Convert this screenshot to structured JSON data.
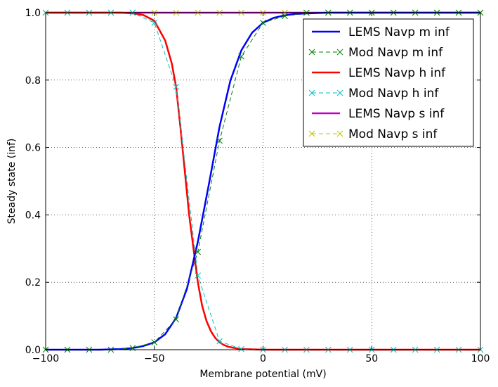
{
  "chart_data": {
    "type": "line",
    "title": "",
    "xlabel": "Membrane potential (mV)",
    "ylabel": "Steady state (inf)",
    "xlim": [
      -100,
      100
    ],
    "ylim": [
      0.0,
      1.0
    ],
    "xticks": [
      -100,
      -50,
      0,
      50,
      100
    ],
    "xtick_labels": [
      "−100",
      "−50",
      "0",
      "50",
      "100"
    ],
    "yticks": [
      0.0,
      0.2,
      0.4,
      0.6,
      0.8,
      1.0
    ],
    "ytick_labels": [
      "0.0",
      "0.2",
      "0.4",
      "0.6",
      "0.8",
      "1.0"
    ],
    "grid": true,
    "legend_position": "top-right",
    "series": [
      {
        "name": "LEMS Navp m inf",
        "kind": "line",
        "color": "#0000ff",
        "dash": "solid",
        "x": [
          -100,
          -95,
          -90,
          -85,
          -80,
          -75,
          -70,
          -65,
          -60,
          -55,
          -50,
          -45,
          -40,
          -35,
          -30,
          -25,
          -20,
          -15,
          -10,
          -5,
          0,
          5,
          10,
          15,
          20,
          25,
          30,
          35,
          40,
          45,
          50,
          55,
          60,
          65,
          70,
          75,
          80,
          85,
          90,
          95,
          100
        ],
        "y": [
          0.0,
          0.0,
          0.0,
          0.0,
          0.0,
          0.0,
          0.001,
          0.002,
          0.005,
          0.011,
          0.022,
          0.046,
          0.094,
          0.181,
          0.32,
          0.488,
          0.662,
          0.799,
          0.888,
          0.941,
          0.97,
          0.985,
          0.992,
          0.996,
          0.998,
          0.999,
          1.0,
          1.0,
          1.0,
          1.0,
          1.0,
          1.0,
          1.0,
          1.0,
          1.0,
          1.0,
          1.0,
          1.0,
          1.0,
          1.0,
          1.0
        ]
      },
      {
        "name": "Mod Navp m inf",
        "kind": "marker-dash",
        "color": "#008000",
        "dash": "6,4",
        "marker": "x",
        "x": [
          -100,
          -90,
          -80,
          -70,
          -60,
          -50,
          -40,
          -30,
          -20,
          -10,
          0,
          10,
          20,
          30,
          40,
          50,
          60,
          70,
          80,
          90,
          100
        ],
        "y": [
          0.0,
          0.0,
          0.0,
          0.0,
          0.005,
          0.022,
          0.09,
          0.29,
          0.62,
          0.87,
          0.97,
          0.99,
          1.0,
          1.0,
          1.0,
          1.0,
          1.0,
          1.0,
          1.0,
          1.0,
          1.0
        ]
      },
      {
        "name": "LEMS Navp h inf",
        "kind": "line",
        "color": "#ff0000",
        "dash": "solid",
        "x": [
          -100,
          -95,
          -90,
          -85,
          -80,
          -75,
          -70,
          -65,
          -60,
          -55,
          -50,
          -45,
          -42,
          -40,
          -38,
          -36,
          -34,
          -32,
          -30,
          -28,
          -26,
          -24,
          -22,
          -20,
          -18,
          -16,
          -14,
          -12,
          -10,
          -5,
          0,
          5,
          10,
          20,
          30,
          40,
          50,
          60,
          70,
          80,
          90,
          100
        ],
        "y": [
          1.0,
          1.0,
          1.0,
          1.0,
          1.0,
          1.0,
          1.0,
          1.0,
          0.998,
          0.993,
          0.976,
          0.917,
          0.85,
          0.78,
          0.66,
          0.53,
          0.4,
          0.3,
          0.2,
          0.13,
          0.085,
          0.055,
          0.035,
          0.022,
          0.014,
          0.009,
          0.006,
          0.004,
          0.002,
          0.001,
          0.0,
          0.0,
          0.0,
          0.0,
          0.0,
          0.0,
          0.0,
          0.0,
          0.0,
          0.0,
          0.0,
          0.0
        ]
      },
      {
        "name": "Mod Navp h inf",
        "kind": "marker-dash",
        "color": "#00bfbf",
        "dash": "6,4",
        "marker": "x",
        "x": [
          -100,
          -90,
          -80,
          -70,
          -60,
          -50,
          -40,
          -30,
          -20,
          -10,
          0,
          10,
          20,
          30,
          40,
          50,
          60,
          70,
          80,
          90,
          100
        ],
        "y": [
          1.0,
          1.0,
          1.0,
          1.0,
          1.0,
          0.97,
          0.78,
          0.22,
          0.025,
          0.002,
          0.0,
          0.0,
          0.0,
          0.0,
          0.0,
          0.0,
          0.0,
          0.0,
          0.0,
          0.0,
          0.0
        ]
      },
      {
        "name": "LEMS Navp s inf",
        "kind": "line",
        "color": "#bf00bf",
        "dash": "solid",
        "x": [
          -100,
          100
        ],
        "y": [
          1.0,
          1.0
        ]
      },
      {
        "name": "Mod Navp s inf",
        "kind": "marker-dash",
        "color": "#bfbf00",
        "dash": "6,4",
        "marker": "x",
        "x": [
          -100,
          -90,
          -80,
          -70,
          -60,
          -50,
          -40,
          -30,
          -20,
          -10,
          0,
          10,
          20,
          30,
          40,
          50,
          60,
          70,
          80,
          90,
          100
        ],
        "y": [
          1.0,
          1.0,
          1.0,
          1.0,
          1.0,
          1.0,
          1.0,
          1.0,
          1.0,
          1.0,
          1.0,
          1.0,
          1.0,
          1.0,
          1.0,
          1.0,
          1.0,
          1.0,
          1.0,
          1.0,
          1.0
        ]
      }
    ]
  }
}
